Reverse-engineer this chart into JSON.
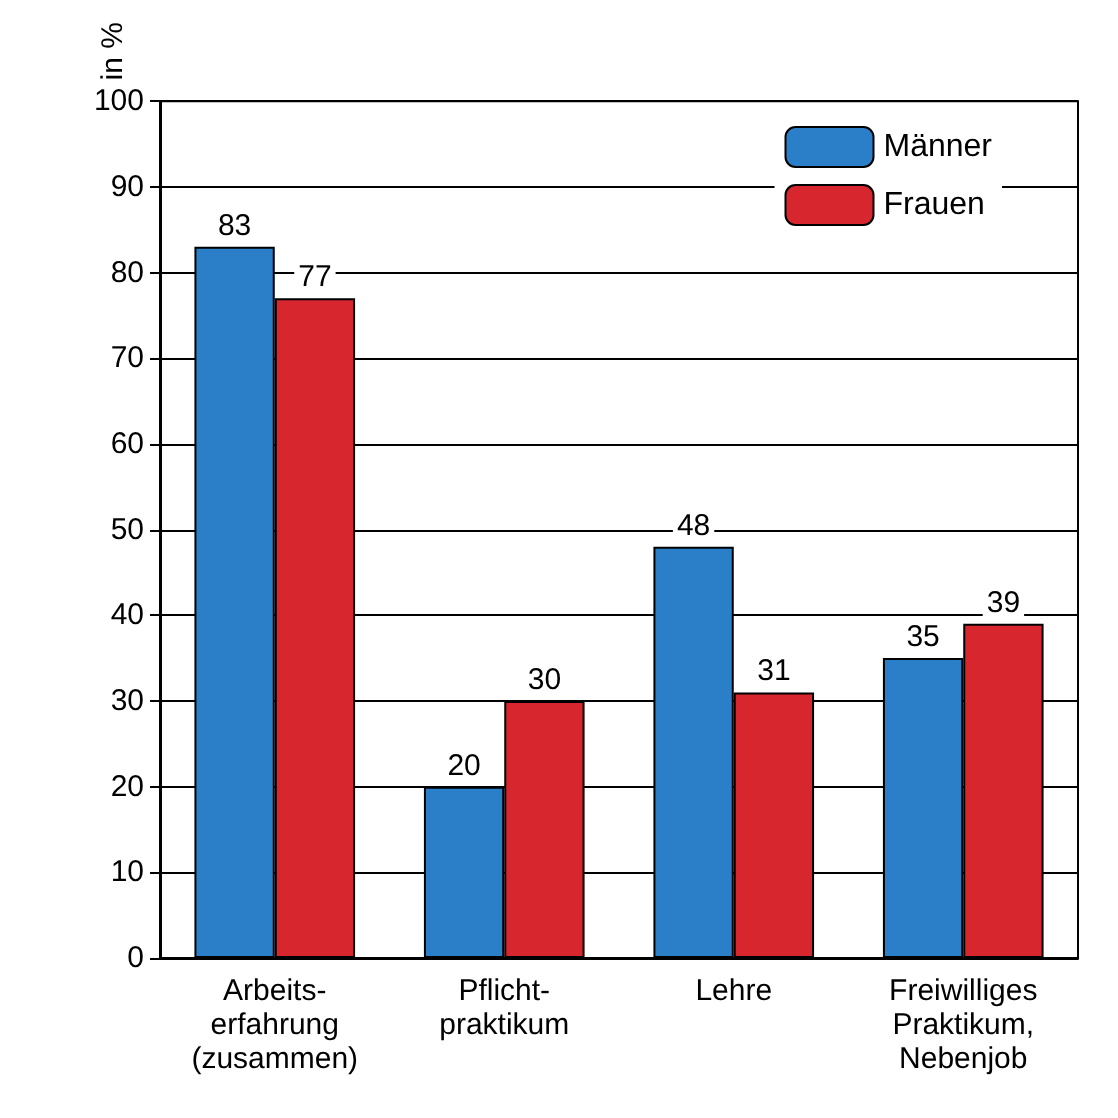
{
  "chart_data": {
    "type": "bar",
    "ylabel": "in %",
    "categories": [
      "Arbeits-\nerfahrung\n(zusammen)",
      "Pflicht-\npraktikum",
      "Lehre",
      "Freiwilliges\nPraktikum,\nNebenjob"
    ],
    "series": [
      {
        "name": "Männer",
        "color": "#2b7fc8",
        "values": [
          83,
          20,
          48,
          35
        ]
      },
      {
        "name": "Frauen",
        "color": "#d7262d",
        "values": [
          77,
          30,
          31,
          39
        ]
      }
    ],
    "ylim": [
      0,
      100
    ],
    "yticks": [
      0,
      10,
      20,
      30,
      40,
      50,
      60,
      70,
      80,
      90,
      100
    ],
    "grid": "y",
    "legend": "top right",
    "data_labels": true
  }
}
